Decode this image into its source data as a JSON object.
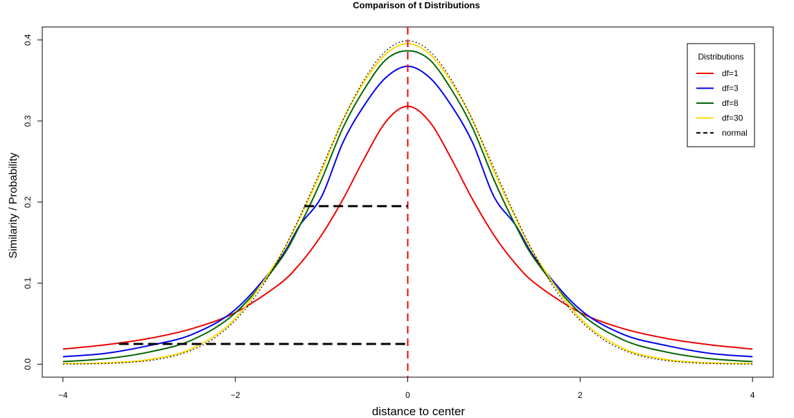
{
  "chart_data": {
    "type": "line",
    "title": "Comparison of t Distributions",
    "xlabel": "distance to center",
    "ylabel": "Similarity / Probability",
    "xlim": [
      -4.24,
      4.24
    ],
    "ylim": [
      -0.016,
      0.416
    ],
    "x_ticks": [
      "-4",
      "-2",
      "0",
      "2",
      "4"
    ],
    "y_ticks": [
      "0.0",
      "0.1",
      "0.2",
      "0.3",
      "0.4"
    ],
    "legend": {
      "title": "Distributions",
      "position": "top-right",
      "entries": [
        "df=1",
        "df=3",
        "df=8",
        "df=30",
        "normal"
      ]
    },
    "series": [
      {
        "name": "df=1",
        "color": "#ee0000",
        "style": "solid",
        "x": [
          -4,
          -3.5,
          -3,
          -2.5,
          -2,
          -1.5,
          -1.25,
          -1,
          -0.75,
          -0.5,
          -0.25,
          0,
          0.25,
          0.5,
          0.75,
          1,
          1.25,
          1.5,
          2,
          2.5,
          3,
          3.5,
          4
        ],
        "y": [
          0.0187,
          0.024,
          0.0318,
          0.0439,
          0.0637,
          0.0979,
          0.1239,
          0.1592,
          0.2037,
          0.2546,
          0.2996,
          0.3183,
          0.2996,
          0.2546,
          0.2037,
          0.1592,
          0.1239,
          0.0979,
          0.0637,
          0.0439,
          0.0318,
          0.024,
          0.0187
        ]
      },
      {
        "name": "df=3",
        "color": "#0000ee",
        "style": "solid",
        "x": [
          -4,
          -3.5,
          -3,
          -2.5,
          -2,
          -1.5,
          -1.25,
          -1,
          -0.75,
          -0.5,
          -0.25,
          0,
          0.25,
          0.5,
          0.75,
          1,
          1.25,
          1.5,
          2,
          2.5,
          3,
          3.5,
          4
        ],
        "y": [
          0.0092,
          0.0135,
          0.023,
          0.0368,
          0.0675,
          0.1274,
          0.1717,
          0.2067,
          0.274,
          0.32,
          0.354,
          0.3676,
          0.354,
          0.32,
          0.274,
          0.2067,
          0.1717,
          0.1274,
          0.0675,
          0.0368,
          0.023,
          0.0135,
          0.0092
        ]
      },
      {
        "name": "df=8",
        "color": "#006400",
        "style": "solid",
        "x": [
          -4,
          -3.5,
          -3,
          -2.5,
          -2,
          -1.5,
          -1.25,
          -1,
          -0.75,
          -0.5,
          -0.25,
          0,
          0.25,
          0.5,
          0.75,
          1,
          1.25,
          1.5,
          2,
          2.5,
          3,
          3.5,
          4
        ],
        "y": [
          0.0032,
          0.0068,
          0.015,
          0.03,
          0.0633,
          0.1254,
          0.1715,
          0.2276,
          0.292,
          0.34,
          0.376,
          0.3867,
          0.376,
          0.34,
          0.292,
          0.2276,
          0.1715,
          0.1254,
          0.0633,
          0.03,
          0.015,
          0.0068,
          0.0032
        ]
      },
      {
        "name": "df=30",
        "color": "#ffd700",
        "style": "solid",
        "x": [
          -4,
          -3.5,
          -3,
          -2.5,
          -2,
          -1.5,
          -1.25,
          -1,
          -0.75,
          -0.5,
          -0.25,
          0,
          0.25,
          0.5,
          0.75,
          1,
          1.25,
          1.5,
          2,
          2.5,
          3,
          3.5,
          4
        ],
        "y": [
          0.0006,
          0.0016,
          0.0058,
          0.0194,
          0.0565,
          0.1304,
          0.1808,
          0.2382,
          0.302,
          0.349,
          0.383,
          0.3956,
          0.383,
          0.349,
          0.302,
          0.2382,
          0.1808,
          0.1304,
          0.0565,
          0.0194,
          0.0058,
          0.0016,
          0.0006
        ]
      },
      {
        "name": "normal",
        "color": "#000000",
        "style": "dotted",
        "x": [
          -4,
          -3.5,
          -3,
          -2.5,
          -2,
          -1.5,
          -1.25,
          -1,
          -0.75,
          -0.5,
          -0.25,
          0,
          0.25,
          0.5,
          0.75,
          1,
          1.25,
          1.5,
          2,
          2.5,
          3,
          3.5,
          4
        ],
        "y": [
          0.0001,
          0.0009,
          0.0044,
          0.0175,
          0.054,
          0.1295,
          0.1826,
          0.242,
          0.3011,
          0.3521,
          0.3867,
          0.3989,
          0.3867,
          0.3521,
          0.3011,
          0.242,
          0.1826,
          0.1295,
          0.054,
          0.0175,
          0.0044,
          0.0009,
          0.0001
        ]
      }
    ],
    "annotations": [
      {
        "type": "vline",
        "x": 0,
        "color": "#ee0000",
        "style": "dashed"
      },
      {
        "type": "hsegment",
        "x0": -1.2,
        "x1": 0,
        "y": 0.195,
        "color": "#000000",
        "style": "dashed"
      },
      {
        "type": "hsegment",
        "x0": -3.35,
        "x1": 0,
        "y": 0.025,
        "color": "#000000",
        "style": "dashed"
      }
    ]
  }
}
